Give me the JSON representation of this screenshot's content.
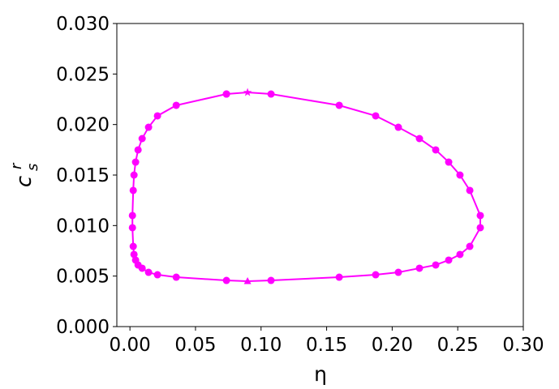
{
  "chart_data": {
    "type": "line",
    "xlabel": "η",
    "ylabel": "c",
    "ylabel_sub": "s",
    "ylabel_sup": "r",
    "xlim": [
      -0.01,
      0.3
    ],
    "ylim": [
      0,
      0.03
    ],
    "xticks": [
      {
        "value": 0,
        "label": "0.00"
      },
      {
        "value": 0.05,
        "label": "0.05"
      },
      {
        "value": 0.1,
        "label": "0.10"
      },
      {
        "value": 0.15,
        "label": "0.15"
      },
      {
        "value": 0.2,
        "label": "0.20"
      },
      {
        "value": 0.25,
        "label": "0.25"
      },
      {
        "value": 0.3,
        "label": "0.30"
      }
    ],
    "yticks": [
      {
        "value": 0,
        "label": "0.000"
      },
      {
        "value": 0.005,
        "label": "0.005"
      },
      {
        "value": 0.01,
        "label": "0.010"
      },
      {
        "value": 0.015,
        "label": "0.015"
      },
      {
        "value": 0.02,
        "label": "0.020"
      },
      {
        "value": 0.025,
        "label": "0.025"
      },
      {
        "value": 0.03,
        "label": "0.030"
      }
    ],
    "grid": false,
    "series": [
      {
        "color": "#ff00ff",
        "x": [
          0.0736,
          0.0897,
          0.1076,
          0.1596,
          0.1874,
          0.2047,
          0.2208,
          0.2332,
          0.2431,
          0.2517,
          0.2592,
          0.2672,
          0.2672,
          0.2592,
          0.2517,
          0.2431,
          0.2332,
          0.2208,
          0.2047,
          0.1874,
          0.1596,
          0.1076,
          0.0897,
          0.0736,
          0.0353,
          0.021,
          0.0142,
          0.0093,
          0.0062,
          0.0043,
          0.0031,
          0.0025,
          0.0019,
          0.0019,
          0.0025,
          0.0031,
          0.0043,
          0.0062,
          0.0093,
          0.0142,
          0.021,
          0.0353,
          0.0736
        ],
        "values": [
          0.02302,
          0.02318,
          0.02302,
          0.0219,
          0.02086,
          0.01973,
          0.01861,
          0.01749,
          0.01628,
          0.015,
          0.01348,
          0.01099,
          0.00979,
          0.00794,
          0.00714,
          0.00658,
          0.0061,
          0.00578,
          0.00537,
          0.00513,
          0.00489,
          0.00457,
          0.00449,
          0.00457,
          0.00489,
          0.00513,
          0.00537,
          0.00578,
          0.0061,
          0.00658,
          0.00714,
          0.00794,
          0.00979,
          0.01099,
          0.01348,
          0.015,
          0.01628,
          0.01749,
          0.01861,
          0.01973,
          0.02086,
          0.0219,
          0.02302
        ],
        "markers": [
          "circle",
          "star",
          "circle",
          "circle",
          "circle",
          "circle",
          "circle",
          "circle",
          "circle",
          "circle",
          "circle",
          "circle",
          "circle",
          "circle",
          "circle",
          "circle",
          "circle",
          "circle",
          "circle",
          "circle",
          "circle",
          "circle",
          "triangle",
          "circle",
          "circle",
          "circle",
          "circle",
          "circle",
          "circle",
          "circle",
          "circle",
          "circle",
          "circle",
          "circle",
          "circle",
          "circle",
          "circle",
          "circle",
          "circle",
          "circle",
          "circle",
          "circle",
          "circle"
        ]
      }
    ]
  }
}
